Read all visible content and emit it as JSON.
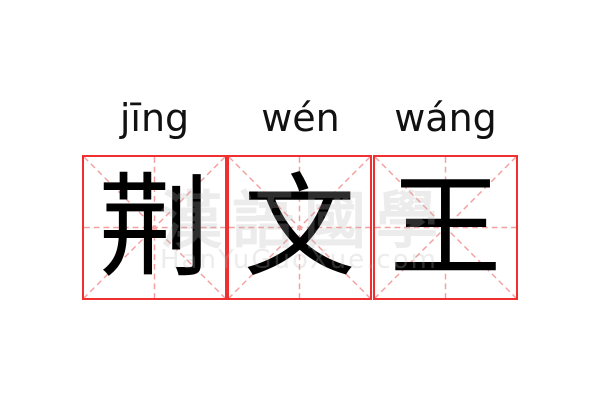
{
  "characters": [
    {
      "hanzi": "荆",
      "pinyin": "jīng"
    },
    {
      "hanzi": "文",
      "pinyin": "wén"
    },
    {
      "hanzi": "王",
      "pinyin": "wáng"
    }
  ],
  "watermark": {
    "chinese": "漢語國學",
    "latin": "HanYuGuoXue.com"
  },
  "colors": {
    "border": "#f03030",
    "guide": "#f4a0a0",
    "text": "#000000"
  }
}
